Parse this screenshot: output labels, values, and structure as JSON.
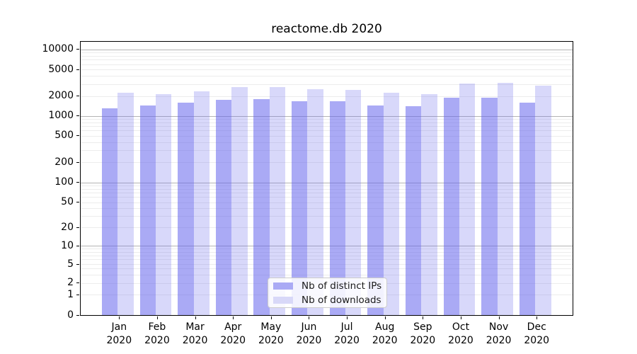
{
  "chart_data": {
    "type": "bar",
    "title": "reactome.db 2020",
    "categories": [
      "Jan",
      "Feb",
      "Mar",
      "Apr",
      "May",
      "Jun",
      "Jul",
      "Aug",
      "Sep",
      "Oct",
      "Nov",
      "Dec"
    ],
    "category_year": "2020",
    "series": [
      {
        "name": "Nb of distinct IPs",
        "color": "#6464ed",
        "alpha": 0.55,
        "rendered_color": "#aaaaf5",
        "values": [
          1290,
          1420,
          1600,
          1760,
          1800,
          1660,
          1660,
          1430,
          1410,
          1880,
          1860,
          1600
        ]
      },
      {
        "name": "Nb of downloads",
        "color": "#6464ed",
        "alpha": 0.25,
        "rendered_color": "#d8d8f8",
        "values": [
          2250,
          2150,
          2350,
          2750,
          2700,
          2550,
          2490,
          2240,
          2150,
          3050,
          3150,
          2890
        ]
      }
    ],
    "xlabel": "",
    "ylabel": "",
    "yscale": "symlog",
    "yticks": [
      0,
      1,
      2,
      5,
      10,
      20,
      50,
      100,
      200,
      500,
      1000,
      2000,
      5000,
      10000
    ],
    "ylim": [
      0,
      13000
    ],
    "grid": true,
    "grid_minor_color": "#ececec",
    "grid_major_color": "#b4b4b4",
    "legend_position": "lower center inside",
    "background_color": "#ffffff"
  }
}
